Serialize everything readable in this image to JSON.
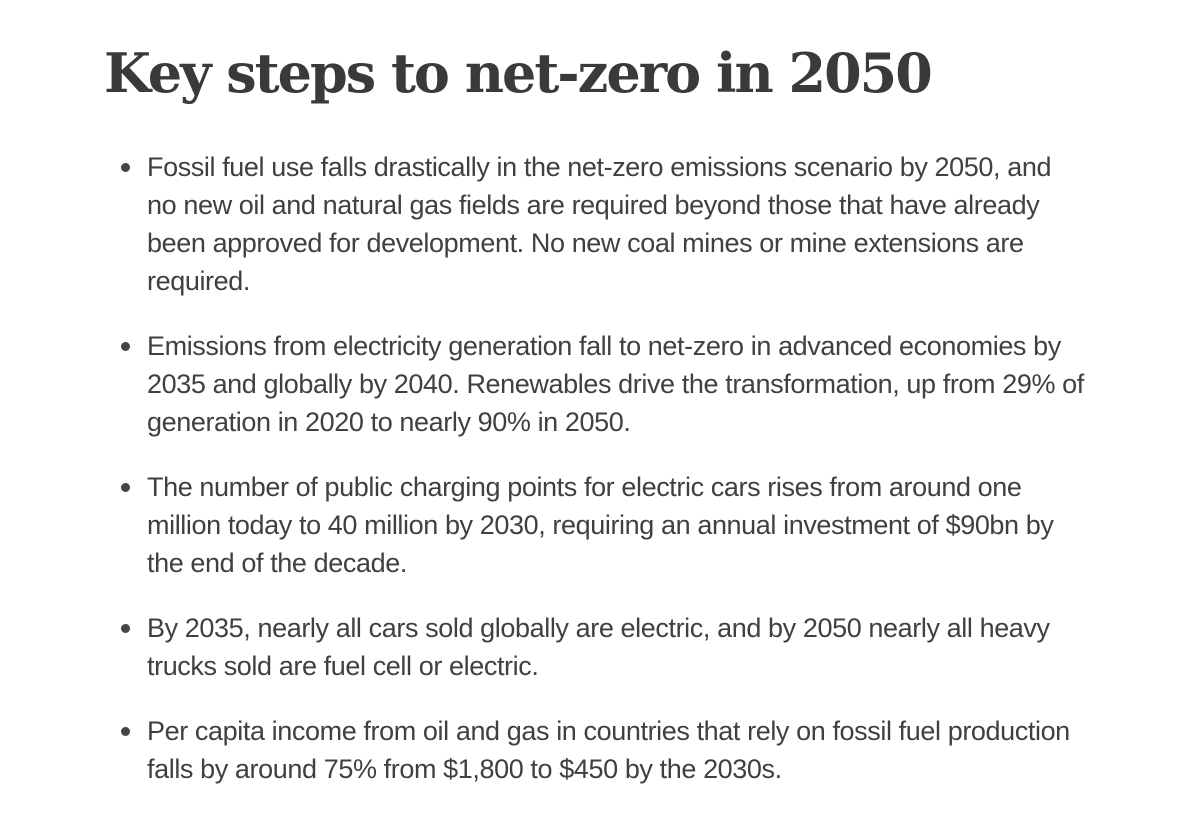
{
  "page": {
    "background_color": "#ffffff",
    "heading_color": "#3a3a3c",
    "body_text_color": "#404042"
  },
  "header": {
    "title": "Key steps to net-zero in 2050"
  },
  "bullets": {
    "items": [
      {
        "text": "Fossil fuel use falls drastically in the net-zero emissions scenario by 2050, and no new oil and natural gas fields are required beyond those that have already been approved for development. No new coal mines or mine extensions are required."
      },
      {
        "text": "Emissions from electricity generation fall to net-zero in advanced economies by 2035 and globally by 2040. Renewables drive the transformation, up from 29% of generation in 2020 to nearly 90% in 2050."
      },
      {
        "text": "The number of public charging points for electric cars rises from around one million today to 40 million by 2030, requiring an annual investment of $90bn by the end of the decade."
      },
      {
        "text": "By 2035, nearly all cars sold globally are electric, and by 2050 nearly all heavy trucks sold are fuel cell or electric."
      },
      {
        "text": "Per capita income from oil and gas in countries that rely on fossil fuel production falls by around 75% from $1,800 to $450 by the 2030s."
      }
    ]
  }
}
